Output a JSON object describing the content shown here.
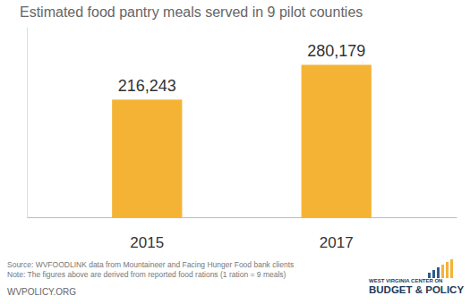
{
  "chart_data": {
    "type": "bar",
    "title": "Estimated food pantry meals served in 9 pilot counties",
    "categories": [
      "2015",
      "2017"
    ],
    "values": [
      216243,
      280179
    ],
    "value_labels": [
      "216,243",
      "280,179"
    ],
    "color": "#f5b335",
    "ylim": [
      0,
      350000
    ],
    "data_labels": true,
    "tick_labels": "x",
    "grid": false,
    "annotations": [
      "Source: WVFOODLINK data from Mountaineer and Facing Hunger Food bank clients",
      "Note: The figures above are derived from reported food rations (1 ration = 9 meals)",
      "WVPOLICY.ORG",
      "WEST VIRGINIA CENTER ON",
      "BUDGET & POLICY"
    ]
  }
}
